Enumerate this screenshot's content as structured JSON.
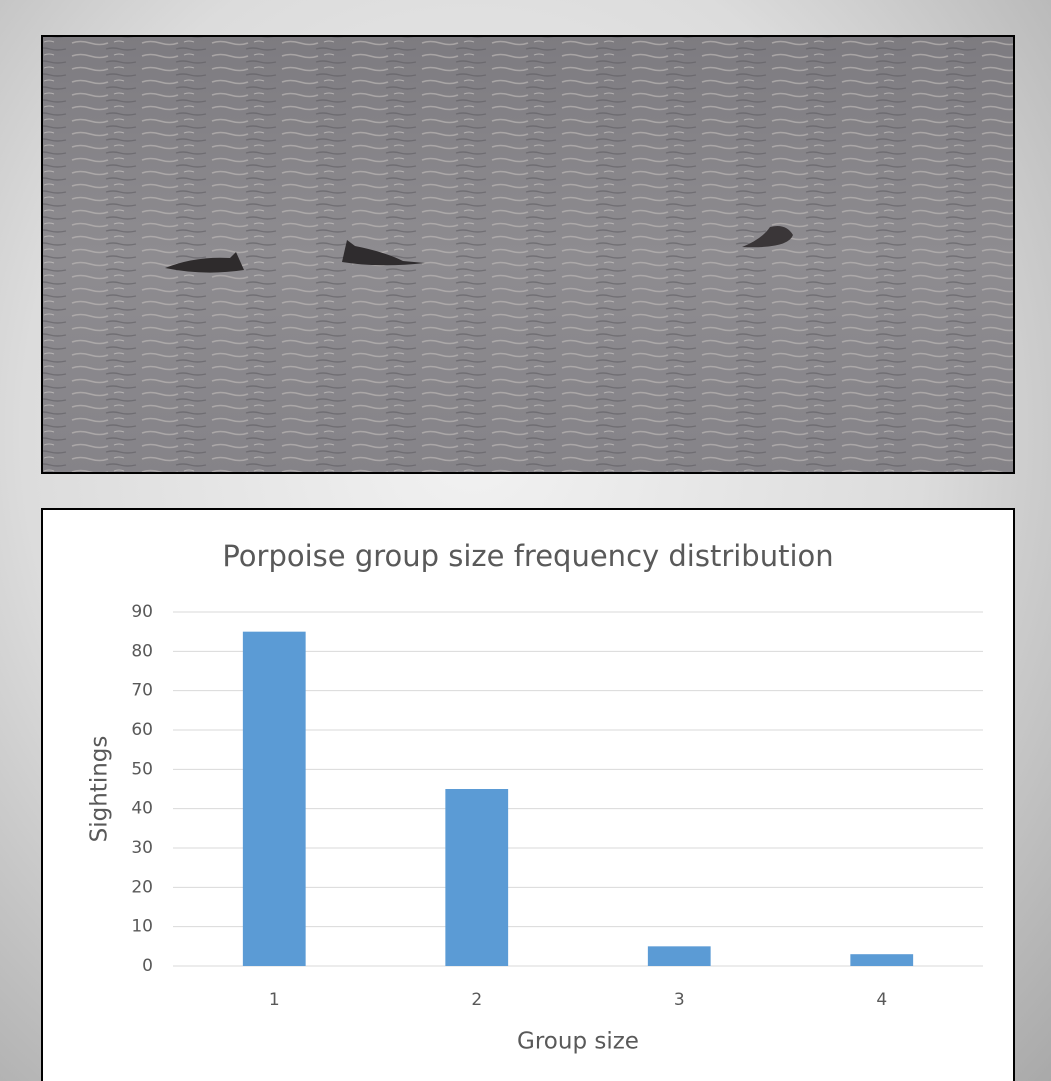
{
  "chart_data": {
    "type": "bar",
    "title": "Porpoise group size frequency distribution",
    "x_label": "Group size",
    "y_label": "Sightings",
    "categories": [
      "1",
      "2",
      "3",
      "4"
    ],
    "values": [
      85,
      45,
      5,
      3
    ],
    "color": "#5b9bd5",
    "ylim": [
      0,
      90
    ],
    "yticks": [
      0,
      10,
      20,
      30,
      40,
      50,
      60,
      70,
      80,
      90
    ],
    "grid": true
  }
}
